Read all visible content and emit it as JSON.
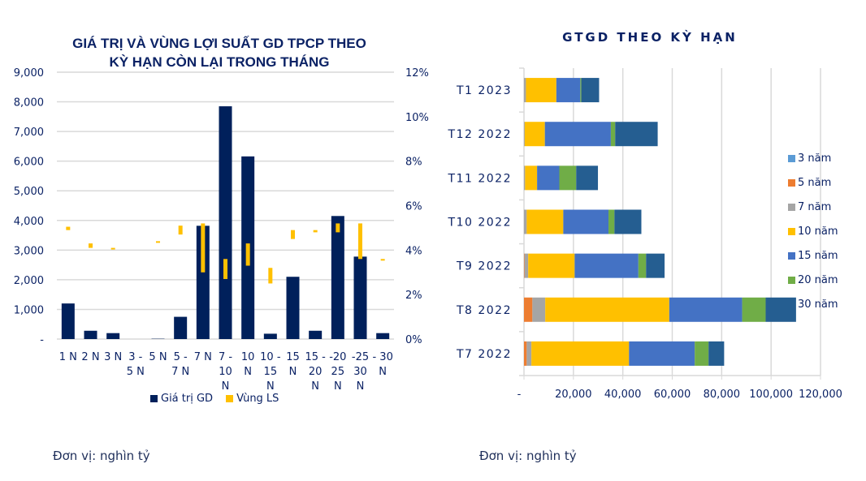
{
  "chart_data": [
    {
      "type": "bar",
      "title": "GIÁ TRỊ VÀ VÙNG LỢI SUẤT GD TPCP THEO KỲ HẠN CÒN LẠI TRONG THÁNG",
      "title_lines": [
        "GIÁ TRỊ VÀ VÙNG LỢI SUẤT GD TPCP THEO",
        "KỲ HẠN CÒN LẠI TRONG THÁNG"
      ],
      "categories": [
        "1 N",
        "2 N",
        "3 N",
        "3 - 5 N",
        "5 N",
        "5 - 7 N",
        "7 N",
        "7 - 10 N",
        "10 N",
        "10 - 15 N",
        "15 N",
        "15 - 20 N",
        "20 - 25 N",
        "25 - 30 N",
        "30 N"
      ],
      "category_label_lines": [
        [
          "1 N"
        ],
        [
          "2 N"
        ],
        [
          "3 N"
        ],
        [
          "3 -",
          "5 N"
        ],
        [
          "5 N"
        ],
        [
          "5 -",
          "7 N"
        ],
        [
          "7 N"
        ],
        [
          "7 -",
          "10",
          "N"
        ],
        [
          "10",
          "N"
        ],
        [
          "10 -",
          "15",
          "N"
        ],
        [
          "15",
          "N"
        ],
        [
          "15 -",
          "20",
          "N"
        ],
        [
          "-20",
          "25",
          "N"
        ],
        [
          "-25",
          "30",
          "N"
        ],
        [
          "- 30",
          "N"
        ]
      ],
      "series": [
        {
          "name": "Giá trị GD",
          "axis": "left",
          "color": "#00205B",
          "values": [
            1200,
            280,
            200,
            0,
            10,
            750,
            3820,
            7850,
            6160,
            180,
            2100,
            280,
            4150,
            2780,
            200
          ]
        },
        {
          "name": "Vùng LS",
          "axis": "right",
          "type": "range",
          "color": "#FFC000",
          "ranges": [
            [
              4.9,
              5.05
            ],
            [
              4.1,
              4.3
            ],
            [
              4.05,
              4.1
            ],
            null,
            [
              4.35,
              4.4
            ],
            [
              4.7,
              5.1
            ],
            [
              3.0,
              5.2
            ],
            [
              2.7,
              3.6
            ],
            [
              3.3,
              4.3
            ],
            [
              2.5,
              3.2
            ],
            [
              4.5,
              4.9
            ],
            [
              4.8,
              4.9
            ],
            [
              4.8,
              5.2
            ],
            [
              3.6,
              5.2
            ],
            [
              3.55,
              3.6
            ]
          ]
        }
      ],
      "y_left": {
        "ylim": [
          0,
          9000
        ],
        "ticks": [
          0,
          1000,
          2000,
          3000,
          4000,
          5000,
          6000,
          7000,
          8000,
          9000
        ],
        "tick_labels": [
          "-",
          "1,000",
          "2,000",
          "3,000",
          "4,000",
          "5,000",
          "6,000",
          "7,000",
          "8,000",
          "9,000"
        ]
      },
      "y_right": {
        "ylim": [
          0,
          12
        ],
        "ticks": [
          0,
          2,
          4,
          6,
          8,
          10,
          12
        ],
        "tick_labels": [
          "0%",
          "2%",
          "4%",
          "6%",
          "8%",
          "10%",
          "12%"
        ]
      },
      "grid": true,
      "legend": "bottom",
      "unit_note": "Đơn vị: nghìn tỷ"
    },
    {
      "type": "bar",
      "orientation": "horizontal",
      "stacked": true,
      "title": "GTGD THEO KỲ HẠN",
      "categories": [
        "T1 2023",
        "T12 2022",
        "T11 2022",
        "T10 2022",
        "T9 2022",
        "T8 2022",
        "T7 2022"
      ],
      "series": [
        {
          "name": "3 năm",
          "color": "#5B9BD5",
          "values": [
            0,
            0,
            0,
            0,
            0,
            0,
            0
          ]
        },
        {
          "name": "5 năm",
          "color": "#ED7D31",
          "values": [
            0,
            0,
            0,
            0,
            200,
            3400,
            1100
          ]
        },
        {
          "name": "7 năm",
          "color": "#A5A5A5",
          "values": [
            800,
            300,
            450,
            1100,
            1500,
            5200,
            1900
          ]
        },
        {
          "name": "10 năm",
          "color": "#FFC000",
          "values": [
            12300,
            8150,
            4850,
            14800,
            18800,
            50200,
            39500
          ]
        },
        {
          "name": "15 năm",
          "color": "#4472C4",
          "values": [
            9700,
            26700,
            9000,
            18300,
            25800,
            29500,
            26600
          ]
        },
        {
          "name": "20 năm",
          "color": "#70AD47",
          "values": [
            400,
            1760,
            6830,
            2400,
            3100,
            9500,
            5600
          ]
        },
        {
          "name": "30 năm",
          "color": "#255E91",
          "values": [
            7200,
            17200,
            8800,
            10900,
            7500,
            12300,
            6300
          ]
        }
      ],
      "x_axis": {
        "xlim": [
          0,
          120000
        ],
        "ticks": [
          0,
          20000,
          40000,
          60000,
          80000,
          100000,
          120000
        ],
        "tick_labels": [
          "-",
          "20,000",
          "40,000",
          "60,000",
          "80,000",
          "100,000",
          "120,000"
        ]
      },
      "grid": true,
      "legend": "right",
      "unit_note": "Đơn vị: nghìn tỷ"
    }
  ]
}
